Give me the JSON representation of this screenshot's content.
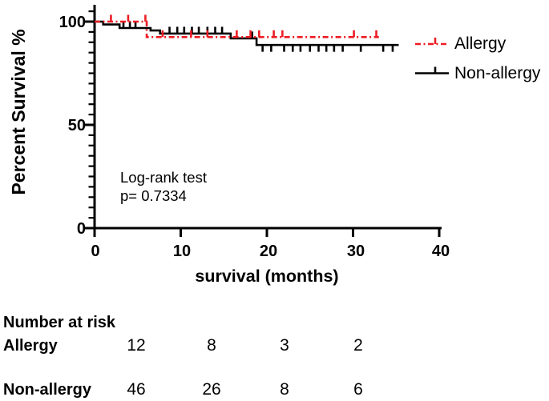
{
  "figure": {
    "background": "#ffffff",
    "y_axis": {
      "title": "Percent Survival %",
      "tick_labels": [
        "100",
        "50",
        "0"
      ],
      "tick_values": [
        100,
        50,
        0
      ],
      "minor_tick_step": 5,
      "axis_max": 105
    },
    "x_axis": {
      "title": "survival (months)",
      "tick_labels": [
        "0",
        "10",
        "20",
        "30",
        "40"
      ],
      "tick_values": [
        0,
        10,
        20,
        30,
        40
      ]
    },
    "annotation": {
      "line1": "Log-rank test",
      "line2": "p= 0.7334"
    },
    "legend": {
      "items": [
        {
          "label": "Allergy"
        },
        {
          "label": "Non-allergy"
        }
      ]
    }
  },
  "chart_data": {
    "type": "line",
    "subtype": "kaplan-meier-step",
    "title": "",
    "xlabel": "survival (months)",
    "ylabel": "Percent Survival %",
    "xlim": [
      0,
      40
    ],
    "ylim": [
      0,
      105
    ],
    "grid": false,
    "legend_position": "top-right-outside",
    "stats_annotation": "Log-rank test p= 0.7334",
    "series": [
      {
        "name": "Non-allergy",
        "color": "#000000",
        "line_style": "solid",
        "steps": [
          [
            0,
            100
          ],
          [
            1.0,
            98.6
          ],
          [
            2.9,
            96.9
          ],
          [
            6.5,
            95.7
          ],
          [
            7.6,
            94.2
          ],
          [
            15.8,
            91.9
          ],
          [
            18.8,
            88.7
          ]
        ],
        "end_x": 35.3,
        "censor_marks": [
          [
            3.35,
            96.9,
            1
          ],
          [
            4.1,
            96.9,
            1
          ],
          [
            4.75,
            96.9,
            1
          ],
          [
            8.7,
            94.2,
            1
          ],
          [
            9.6,
            94.2,
            1
          ],
          [
            10.4,
            94.2,
            1
          ],
          [
            11.3,
            94.2,
            1
          ],
          [
            12.1,
            94.2,
            1
          ],
          [
            13.1,
            94.2,
            1
          ],
          [
            14.0,
            94.2,
            1
          ],
          [
            14.8,
            94.2,
            1
          ],
          [
            18.3,
            91.9,
            1
          ],
          [
            19.5,
            88.7,
            -1
          ],
          [
            20.5,
            88.7,
            -1
          ],
          [
            22.0,
            88.7,
            -1
          ],
          [
            23.0,
            88.7,
            -1
          ],
          [
            23.9,
            88.7,
            -1
          ],
          [
            25.0,
            88.7,
            -1
          ],
          [
            26.0,
            88.7,
            -1
          ],
          [
            26.9,
            88.7,
            -1
          ],
          [
            27.8,
            88.7,
            -1
          ],
          [
            28.8,
            88.7,
            -1
          ],
          [
            30.9,
            88.7,
            -1
          ],
          [
            33.5,
            88.7,
            -1
          ],
          [
            34.6,
            88.7,
            -1
          ]
        ]
      },
      {
        "name": "Allergy",
        "color": "#ED1C24",
        "line_style": "dash-dot",
        "steps": [
          [
            0,
            100
          ],
          [
            6.05,
            92.5
          ]
        ],
        "end_x": 33.0,
        "censor_marks": [
          [
            1.9,
            100,
            1
          ],
          [
            3.9,
            100,
            1
          ],
          [
            5.9,
            100,
            1
          ],
          [
            7.9,
            92.5,
            1
          ],
          [
            11.2,
            92.5,
            1
          ],
          [
            13.1,
            92.5,
            1
          ],
          [
            16.5,
            92.5,
            1
          ],
          [
            18.1,
            92.5,
            1
          ],
          [
            19.1,
            92.5,
            1
          ],
          [
            20.8,
            92.5,
            1
          ],
          [
            21.8,
            92.5,
            1
          ],
          [
            30.1,
            92.5,
            1
          ],
          [
            32.7,
            92.5,
            1
          ]
        ]
      }
    ],
    "number_at_risk": {
      "title": "Number at risk",
      "rows": [
        {
          "label": "Allergy",
          "values": [
            "12",
            "8",
            "3",
            "2"
          ]
        },
        {
          "label": "Non-allergy",
          "values": [
            "46",
            "26",
            "8",
            "6"
          ]
        }
      ]
    }
  }
}
